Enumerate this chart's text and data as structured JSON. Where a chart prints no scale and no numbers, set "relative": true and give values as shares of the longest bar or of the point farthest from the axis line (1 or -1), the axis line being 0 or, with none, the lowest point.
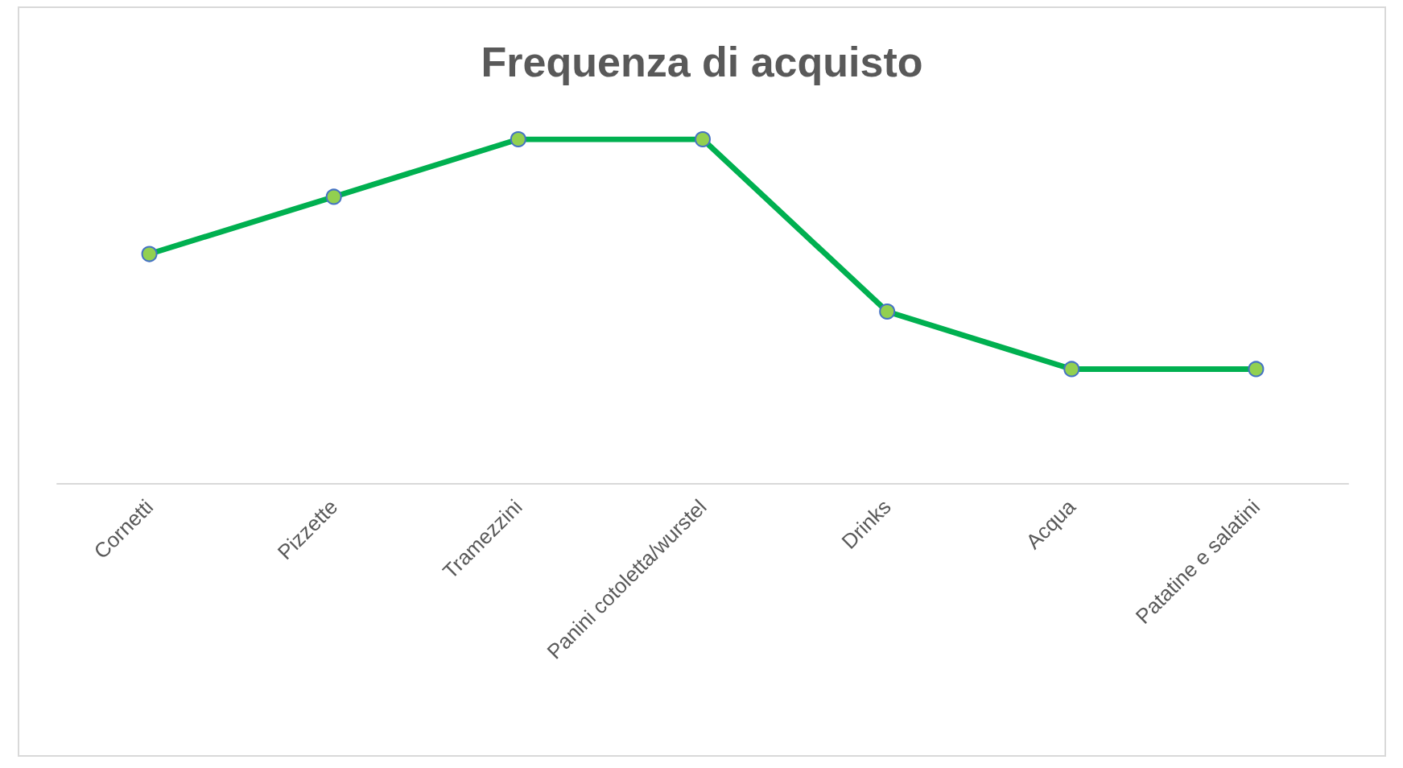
{
  "chart_data": {
    "type": "line",
    "title": "Frequenza di acquisto",
    "relative": true,
    "marker": "circle",
    "line_style": "solid",
    "categories": [
      "Cornetti",
      "Pizzette",
      "Tramezzini",
      "Panini cotoletta/wurstel",
      "Drinks",
      "Acqua",
      "Patatine e salatini"
    ],
    "series": [
      {
        "color": "#00b050",
        "values": [
          0.667,
          0.833,
          1,
          1,
          0.5,
          0.333,
          0.333
        ]
      }
    ]
  }
}
